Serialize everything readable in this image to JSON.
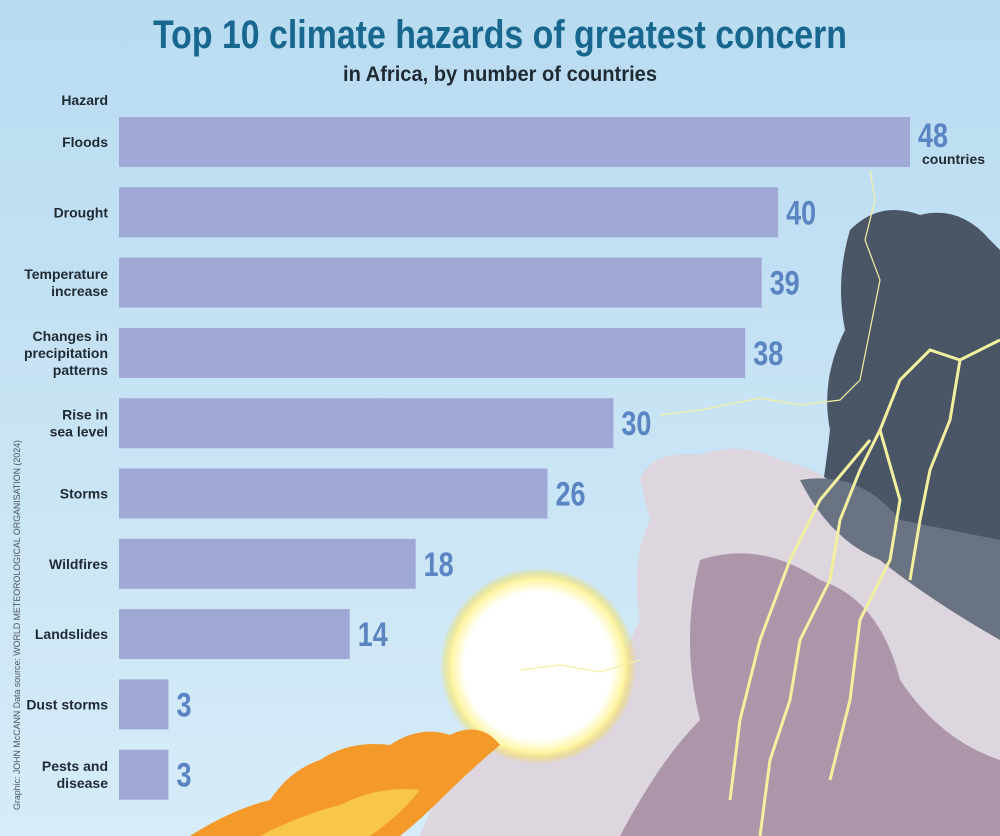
{
  "chart_data": {
    "type": "bar",
    "orientation": "horizontal",
    "title": "Top 10 climate hazards of greatest concern",
    "subtitle": "in Africa, by number of countries",
    "category_header": "Hazard",
    "categories": [
      [
        "Floods"
      ],
      [
        "Drought"
      ],
      [
        "Temperature",
        "increase"
      ],
      [
        "Changes in",
        "precipitation",
        "patterns"
      ],
      [
        "Rise in",
        "sea level"
      ],
      [
        "Storms"
      ],
      [
        "Wildfires"
      ],
      [
        "Landslides"
      ],
      [
        "Dust storms"
      ],
      [
        "Pests and",
        "disease"
      ]
    ],
    "values": [
      48,
      40,
      39,
      38,
      30,
      26,
      18,
      14,
      3,
      3
    ],
    "value_unit": "countries",
    "xlim": [
      0,
      48
    ],
    "grid": false,
    "legend": "none",
    "credit": "Graphic: JOHN McCANN  Data source: WORLD METEOROLOGICAL ORGANISATION (2024)",
    "colors": {
      "bar": "#a0a8d6",
      "value": "#5a84c2",
      "title": "#17678f",
      "sky": "#c5e2f4"
    }
  }
}
